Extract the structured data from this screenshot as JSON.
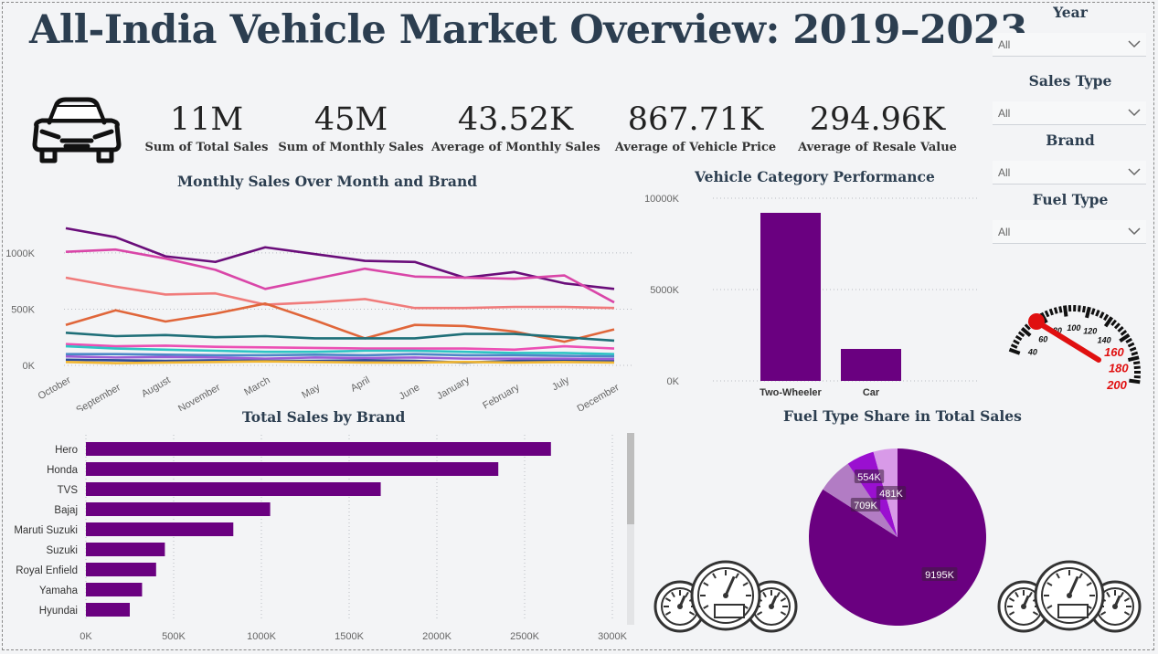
{
  "header": {
    "title": "All-India Vehicle Market Overview: 2019–2023"
  },
  "kpis": [
    {
      "value": "11M",
      "label": "Sum of Total Sales"
    },
    {
      "value": "45M",
      "label": "Sum of Monthly Sales"
    },
    {
      "value": "43.52K",
      "label": "Average of Monthly Sales"
    },
    {
      "value": "867.71K",
      "label": "Average of Vehicle Price"
    },
    {
      "value": "294.96K",
      "label": "Average of Resale Value"
    }
  ],
  "filters": [
    {
      "label": "Year",
      "value": "All"
    },
    {
      "label": "Sales Type",
      "value": "All"
    },
    {
      "label": "Brand",
      "value": "All"
    },
    {
      "label": "Fuel Type",
      "value": "All"
    }
  ],
  "icons": {
    "car": "car-front-icon",
    "gauge": "speedometer-icon",
    "dashboard": "dashboard-gauges-icon"
  },
  "speedometer": {
    "labels": [
      "40",
      "60",
      "80",
      "100",
      "120",
      "140",
      "160",
      "180",
      "200"
    ]
  },
  "chart_data": [
    {
      "id": "line",
      "type": "line",
      "title": "Monthly Sales Over Month and Brand",
      "x": [
        "October",
        "September",
        "August",
        "November",
        "March",
        "May",
        "April",
        "June",
        "January",
        "February",
        "July",
        "December"
      ],
      "yticks": [
        "0K",
        "500K",
        "1000K"
      ],
      "ylim": [
        0,
        1300000
      ],
      "grid": true,
      "series": [
        {
          "color": "#6a0d7a",
          "values": [
            1220000,
            1140000,
            970000,
            920000,
            1050000,
            990000,
            930000,
            920000,
            780000,
            830000,
            730000,
            680000
          ]
        },
        {
          "color": "#d946a8",
          "values": [
            1010000,
            1030000,
            950000,
            850000,
            680000,
            770000,
            860000,
            790000,
            780000,
            770000,
            800000,
            560000
          ]
        },
        {
          "color": "#f07b7b",
          "values": [
            780000,
            700000,
            630000,
            640000,
            540000,
            560000,
            590000,
            510000,
            510000,
            520000,
            520000,
            510000
          ]
        },
        {
          "color": "#e0663a",
          "values": [
            360000,
            490000,
            390000,
            460000,
            550000,
            400000,
            240000,
            360000,
            350000,
            300000,
            210000,
            320000
          ]
        },
        {
          "color": "#1f6f78",
          "values": [
            290000,
            260000,
            270000,
            250000,
            260000,
            240000,
            240000,
            240000,
            280000,
            280000,
            250000,
            220000
          ]
        },
        {
          "color": "#ec4fb4",
          "values": [
            190000,
            170000,
            175000,
            165000,
            160000,
            155000,
            150000,
            150000,
            150000,
            140000,
            170000,
            150000
          ]
        },
        {
          "color": "#2ec4c4",
          "values": [
            170000,
            150000,
            140000,
            130000,
            120000,
            120000,
            130000,
            130000,
            120000,
            110000,
            110000,
            100000
          ]
        },
        {
          "color": "#4d88c7",
          "values": [
            100000,
            100000,
            95000,
            90000,
            90000,
            95000,
            90000,
            100000,
            90000,
            90000,
            85000,
            80000
          ]
        },
        {
          "color": "#9b5cd6",
          "values": [
            80000,
            70000,
            75000,
            70000,
            60000,
            70000,
            65000,
            70000,
            60000,
            60000,
            60000,
            55000
          ]
        },
        {
          "color": "#2a4a9a",
          "values": [
            50000,
            45000,
            40000,
            45000,
            40000,
            40000,
            45000,
            40000,
            25000,
            40000,
            40000,
            35000
          ]
        },
        {
          "color": "#f2b732",
          "values": [
            30000,
            20000,
            25000,
            30000,
            35000,
            30000,
            25000,
            25000,
            30000,
            25000,
            30000,
            25000
          ]
        }
      ]
    },
    {
      "id": "category",
      "type": "bar",
      "title": "Vehicle Category Performance",
      "categories": [
        "Two-Wheeler",
        "Car"
      ],
      "values": [
        9200000,
        1750000
      ],
      "yticks": [
        "0K",
        "5000K",
        "10000K"
      ],
      "ylim": [
        0,
        10000000
      ],
      "color": "#6a0080"
    },
    {
      "id": "brand",
      "type": "bar",
      "orientation": "horizontal",
      "title": "Total Sales by Brand",
      "categories": [
        "Hero",
        "Honda",
        "TVS",
        "Bajaj",
        "Maruti Suzuki",
        "Suzuki",
        "Royal Enfield",
        "Yamaha",
        "Hyundai"
      ],
      "values": [
        2650000,
        2350000,
        1680000,
        1050000,
        840000,
        450000,
        400000,
        320000,
        250000
      ],
      "xticks": [
        "0K",
        "500K",
        "1000K",
        "1500K",
        "2000K",
        "2500K",
        "3000K"
      ],
      "xlim": [
        0,
        3000000
      ],
      "color": "#6a0080"
    },
    {
      "id": "fuel",
      "type": "pie",
      "title": "Fuel Type Share in Total Sales",
      "values": [
        9195,
        709,
        554,
        481
      ],
      "labels": [
        "9195K",
        "709K",
        "554K",
        "481K"
      ],
      "colors": [
        "#6a0080",
        "#b27cc4",
        "#9a10d0",
        "#d89ae8"
      ]
    }
  ]
}
